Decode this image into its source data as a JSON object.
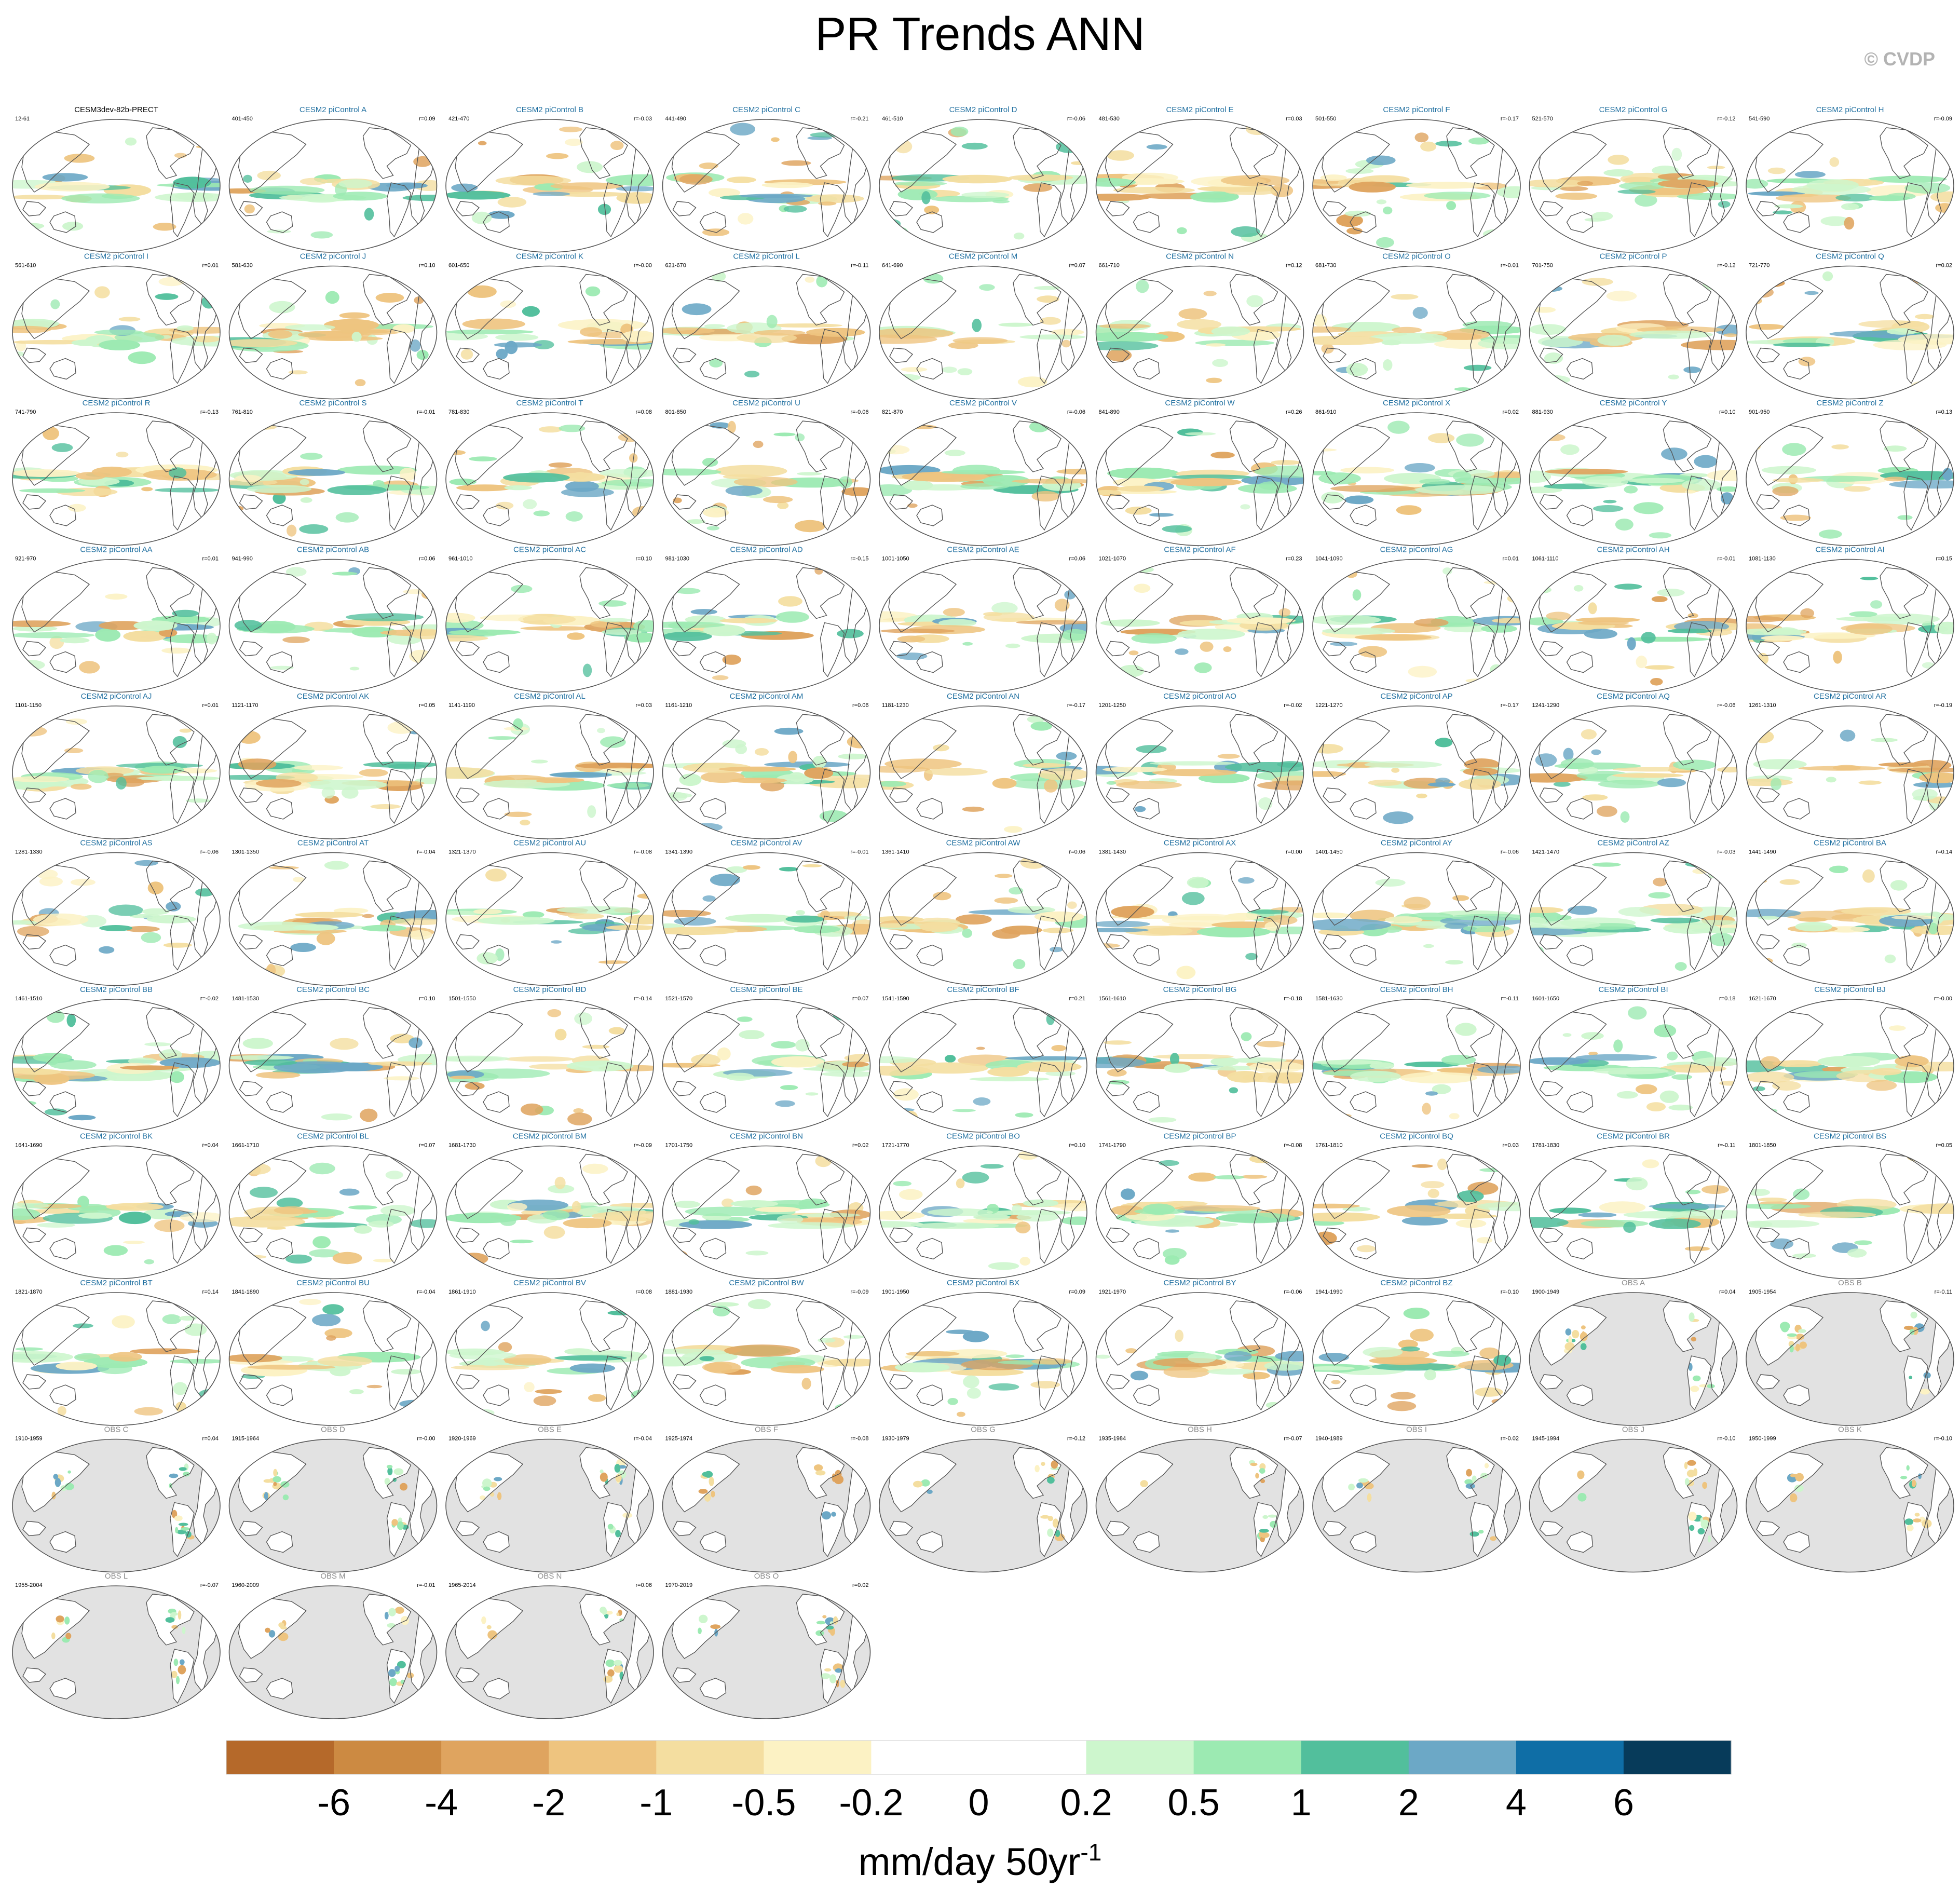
{
  "header": {
    "title": "PR Trends ANN",
    "copyright": "© CVDP"
  },
  "chart_data": {
    "type": "heatmap",
    "title": "PR Trends ANN",
    "map_projection": "robinson",
    "center": "pacific",
    "colors": {
      "title": "#000000",
      "copyright": "#b3b3b3",
      "model_panel_title": "#1f6fa0",
      "obs_panel_title": "#8c8c8c",
      "first_panel_title": "#000000",
      "obs_mask": "#e2e2e2",
      "coastline": "#555555"
    },
    "panels": [
      {
        "title": "CESM3dev-82b-PRECT",
        "years": "12-61",
        "corr": "",
        "kind": "first"
      },
      {
        "title": "CESM2 piControl A",
        "years": "401-450",
        "corr": "r=0.09",
        "kind": "model"
      },
      {
        "title": "CESM2 piControl B",
        "years": "421-470",
        "corr": "r=-0.03",
        "kind": "model"
      },
      {
        "title": "CESM2 piControl C",
        "years": "441-490",
        "corr": "r=-0.21",
        "kind": "model"
      },
      {
        "title": "CESM2 piControl D",
        "years": "461-510",
        "corr": "r=-0.06",
        "kind": "model"
      },
      {
        "title": "CESM2 piControl E",
        "years": "481-530",
        "corr": "r=0.03",
        "kind": "model"
      },
      {
        "title": "CESM2 piControl F",
        "years": "501-550",
        "corr": "r=-0.17",
        "kind": "model"
      },
      {
        "title": "CESM2 piControl G",
        "years": "521-570",
        "corr": "r=-0.12",
        "kind": "model"
      },
      {
        "title": "CESM2 piControl H",
        "years": "541-590",
        "corr": "r=-0.09",
        "kind": "model"
      },
      {
        "title": "CESM2 piControl I",
        "years": "561-610",
        "corr": "r=0.01",
        "kind": "model"
      },
      {
        "title": "CESM2 piControl J",
        "years": "581-630",
        "corr": "r=0.10",
        "kind": "model"
      },
      {
        "title": "CESM2 piControl K",
        "years": "601-650",
        "corr": "r=-0.00",
        "kind": "model"
      },
      {
        "title": "CESM2 piControl L",
        "years": "621-670",
        "corr": "r=-0.11",
        "kind": "model"
      },
      {
        "title": "CESM2 piControl M",
        "years": "641-690",
        "corr": "r=0.07",
        "kind": "model"
      },
      {
        "title": "CESM2 piControl N",
        "years": "661-710",
        "corr": "r=0.12",
        "kind": "model"
      },
      {
        "title": "CESM2 piControl O",
        "years": "681-730",
        "corr": "r=-0.01",
        "kind": "model"
      },
      {
        "title": "CESM2 piControl P",
        "years": "701-750",
        "corr": "r=-0.12",
        "kind": "model"
      },
      {
        "title": "CESM2 piControl Q",
        "years": "721-770",
        "corr": "r=0.02",
        "kind": "model"
      },
      {
        "title": "CESM2 piControl R",
        "years": "741-790",
        "corr": "r=-0.13",
        "kind": "model"
      },
      {
        "title": "CESM2 piControl S",
        "years": "761-810",
        "corr": "r=-0.01",
        "kind": "model"
      },
      {
        "title": "CESM2 piControl T",
        "years": "781-830",
        "corr": "r=0.08",
        "kind": "model"
      },
      {
        "title": "CESM2 piControl U",
        "years": "801-850",
        "corr": "r=-0.06",
        "kind": "model"
      },
      {
        "title": "CESM2 piControl V",
        "years": "821-870",
        "corr": "r=-0.06",
        "kind": "model"
      },
      {
        "title": "CESM2 piControl W",
        "years": "841-890",
        "corr": "r=0.26",
        "kind": "model"
      },
      {
        "title": "CESM2 piControl X",
        "years": "861-910",
        "corr": "r=0.02",
        "kind": "model"
      },
      {
        "title": "CESM2 piControl Y",
        "years": "881-930",
        "corr": "r=0.10",
        "kind": "model"
      },
      {
        "title": "CESM2 piControl Z",
        "years": "901-950",
        "corr": "r=0.13",
        "kind": "model"
      },
      {
        "title": "CESM2 piControl AA",
        "years": "921-970",
        "corr": "r=0.01",
        "kind": "model"
      },
      {
        "title": "CESM2 piControl AB",
        "years": "941-990",
        "corr": "r=0.06",
        "kind": "model"
      },
      {
        "title": "CESM2 piControl AC",
        "years": "961-1010",
        "corr": "r=0.10",
        "kind": "model"
      },
      {
        "title": "CESM2 piControl AD",
        "years": "981-1030",
        "corr": "r=-0.15",
        "kind": "model"
      },
      {
        "title": "CESM2 piControl AE",
        "years": "1001-1050",
        "corr": "r=0.06",
        "kind": "model"
      },
      {
        "title": "CESM2 piControl AF",
        "years": "1021-1070",
        "corr": "r=0.23",
        "kind": "model"
      },
      {
        "title": "CESM2 piControl AG",
        "years": "1041-1090",
        "corr": "r=0.01",
        "kind": "model"
      },
      {
        "title": "CESM2 piControl AH",
        "years": "1061-1110",
        "corr": "r=-0.01",
        "kind": "model"
      },
      {
        "title": "CESM2 piControl AI",
        "years": "1081-1130",
        "corr": "r=0.15",
        "kind": "model"
      },
      {
        "title": "CESM2 piControl AJ",
        "years": "1101-1150",
        "corr": "r=0.01",
        "kind": "model"
      },
      {
        "title": "CESM2 piControl AK",
        "years": "1121-1170",
        "corr": "r=0.05",
        "kind": "model"
      },
      {
        "title": "CESM2 piControl AL",
        "years": "1141-1190",
        "corr": "r=0.03",
        "kind": "model"
      },
      {
        "title": "CESM2 piControl AM",
        "years": "1161-1210",
        "corr": "r=0.06",
        "kind": "model"
      },
      {
        "title": "CESM2 piControl AN",
        "years": "1181-1230",
        "corr": "r=-0.17",
        "kind": "model"
      },
      {
        "title": "CESM2 piControl AO",
        "years": "1201-1250",
        "corr": "r=-0.02",
        "kind": "model"
      },
      {
        "title": "CESM2 piControl AP",
        "years": "1221-1270",
        "corr": "r=-0.17",
        "kind": "model"
      },
      {
        "title": "CESM2 piControl AQ",
        "years": "1241-1290",
        "corr": "r=-0.06",
        "kind": "model"
      },
      {
        "title": "CESM2 piControl AR",
        "years": "1261-1310",
        "corr": "r=-0.19",
        "kind": "model"
      },
      {
        "title": "CESM2 piControl AS",
        "years": "1281-1330",
        "corr": "r=-0.06",
        "kind": "model"
      },
      {
        "title": "CESM2 piControl AT",
        "years": "1301-1350",
        "corr": "r=-0.04",
        "kind": "model"
      },
      {
        "title": "CESM2 piControl AU",
        "years": "1321-1370",
        "corr": "r=-0.08",
        "kind": "model"
      },
      {
        "title": "CESM2 piControl AV",
        "years": "1341-1390",
        "corr": "r=-0.01",
        "kind": "model"
      },
      {
        "title": "CESM2 piControl AW",
        "years": "1361-1410",
        "corr": "r=0.06",
        "kind": "model"
      },
      {
        "title": "CESM2 piControl AX",
        "years": "1381-1430",
        "corr": "r=0.00",
        "kind": "model"
      },
      {
        "title": "CESM2 piControl AY",
        "years": "1401-1450",
        "corr": "r=-0.06",
        "kind": "model"
      },
      {
        "title": "CESM2 piControl AZ",
        "years": "1421-1470",
        "corr": "r=-0.03",
        "kind": "model"
      },
      {
        "title": "CESM2 piControl BA",
        "years": "1441-1490",
        "corr": "r=0.14",
        "kind": "model"
      },
      {
        "title": "CESM2 piControl BB",
        "years": "1461-1510",
        "corr": "r=-0.02",
        "kind": "model"
      },
      {
        "title": "CESM2 piControl BC",
        "years": "1481-1530",
        "corr": "r=0.10",
        "kind": "model"
      },
      {
        "title": "CESM2 piControl BD",
        "years": "1501-1550",
        "corr": "r=-0.14",
        "kind": "model"
      },
      {
        "title": "CESM2 piControl BE",
        "years": "1521-1570",
        "corr": "r=0.07",
        "kind": "model"
      },
      {
        "title": "CESM2 piControl BF",
        "years": "1541-1590",
        "corr": "r=0.21",
        "kind": "model"
      },
      {
        "title": "CESM2 piControl BG",
        "years": "1561-1610",
        "corr": "r=-0.18",
        "kind": "model"
      },
      {
        "title": "CESM2 piControl BH",
        "years": "1581-1630",
        "corr": "r=-0.11",
        "kind": "model"
      },
      {
        "title": "CESM2 piControl BI",
        "years": "1601-1650",
        "corr": "r=0.18",
        "kind": "model"
      },
      {
        "title": "CESM2 piControl BJ",
        "years": "1621-1670",
        "corr": "r=-0.00",
        "kind": "model"
      },
      {
        "title": "CESM2 piControl BK",
        "years": "1641-1690",
        "corr": "r=0.04",
        "kind": "model"
      },
      {
        "title": "CESM2 piControl BL",
        "years": "1661-1710",
        "corr": "r=0.07",
        "kind": "model"
      },
      {
        "title": "CESM2 piControl BM",
        "years": "1681-1730",
        "corr": "r=-0.09",
        "kind": "model"
      },
      {
        "title": "CESM2 piControl BN",
        "years": "1701-1750",
        "corr": "r=0.02",
        "kind": "model"
      },
      {
        "title": "CESM2 piControl BO",
        "years": "1721-1770",
        "corr": "r=0.10",
        "kind": "model"
      },
      {
        "title": "CESM2 piControl BP",
        "years": "1741-1790",
        "corr": "r=-0.08",
        "kind": "model"
      },
      {
        "title": "CESM2 piControl BQ",
        "years": "1761-1810",
        "corr": "r=0.03",
        "kind": "model"
      },
      {
        "title": "CESM2 piControl BR",
        "years": "1781-1830",
        "corr": "r=-0.11",
        "kind": "model"
      },
      {
        "title": "CESM2 piControl BS",
        "years": "1801-1850",
        "corr": "r=0.05",
        "kind": "model"
      },
      {
        "title": "CESM2 piControl BT",
        "years": "1821-1870",
        "corr": "r=0.14",
        "kind": "model"
      },
      {
        "title": "CESM2 piControl BU",
        "years": "1841-1890",
        "corr": "r=-0.04",
        "kind": "model"
      },
      {
        "title": "CESM2 piControl BV",
        "years": "1861-1910",
        "corr": "r=0.08",
        "kind": "model"
      },
      {
        "title": "CESM2 piControl BW",
        "years": "1881-1930",
        "corr": "r=-0.09",
        "kind": "model"
      },
      {
        "title": "CESM2 piControl BX",
        "years": "1901-1950",
        "corr": "r=0.09",
        "kind": "model"
      },
      {
        "title": "CESM2 piControl BY",
        "years": "1921-1970",
        "corr": "r=-0.06",
        "kind": "model"
      },
      {
        "title": "CESM2 piControl BZ",
        "years": "1941-1990",
        "corr": "r=-0.10",
        "kind": "model"
      },
      {
        "title": "OBS A",
        "years": "1900-1949",
        "corr": "r=0.04",
        "kind": "obs"
      },
      {
        "title": "OBS B",
        "years": "1905-1954",
        "corr": "r=-0.11",
        "kind": "obs"
      },
      {
        "title": "OBS C",
        "years": "1910-1959",
        "corr": "r=0.04",
        "kind": "obs"
      },
      {
        "title": "OBS D",
        "years": "1915-1964",
        "corr": "r=-0.00",
        "kind": "obs"
      },
      {
        "title": "OBS E",
        "years": "1920-1969",
        "corr": "r=-0.04",
        "kind": "obs"
      },
      {
        "title": "OBS F",
        "years": "1925-1974",
        "corr": "r=-0.08",
        "kind": "obs"
      },
      {
        "title": "OBS G",
        "years": "1930-1979",
        "corr": "r=-0.12",
        "kind": "obs"
      },
      {
        "title": "OBS H",
        "years": "1935-1984",
        "corr": "r=-0.07",
        "kind": "obs"
      },
      {
        "title": "OBS I",
        "years": "1940-1989",
        "corr": "r=-0.02",
        "kind": "obs"
      },
      {
        "title": "OBS J",
        "years": "1945-1994",
        "corr": "r=-0.10",
        "kind": "obs"
      },
      {
        "title": "OBS K",
        "years": "1950-1999",
        "corr": "r=-0.10",
        "kind": "obs"
      },
      {
        "title": "OBS L",
        "years": "1955-2004",
        "corr": "r=-0.07",
        "kind": "obs"
      },
      {
        "title": "OBS M",
        "years": "1960-2009",
        "corr": "r=-0.01",
        "kind": "obs"
      },
      {
        "title": "OBS N",
        "years": "1965-2014",
        "corr": "r=0.06",
        "kind": "obs"
      },
      {
        "title": "OBS O",
        "years": "1970-2019",
        "corr": "r=0.02",
        "kind": "obs"
      }
    ],
    "colorbar": {
      "labels": [
        "-6",
        "-4",
        "-2",
        "-1",
        "-0.5",
        "-0.2",
        "0",
        "0.2",
        "0.5",
        "1",
        "2",
        "4",
        "6"
      ],
      "colors": [
        "#b5692a",
        "#cc8a42",
        "#dfa45f",
        "#eec47f",
        "#f4dea0",
        "#fcf2c4",
        "#ffffff",
        "#ffffff",
        "#cdf6cd",
        "#9ceab2",
        "#52bf9c",
        "#6ca8c6",
        "#0f6ea6",
        "#073b5a"
      ],
      "unit_label": "mm/day 50yr",
      "unit_exponent": "-1"
    }
  }
}
